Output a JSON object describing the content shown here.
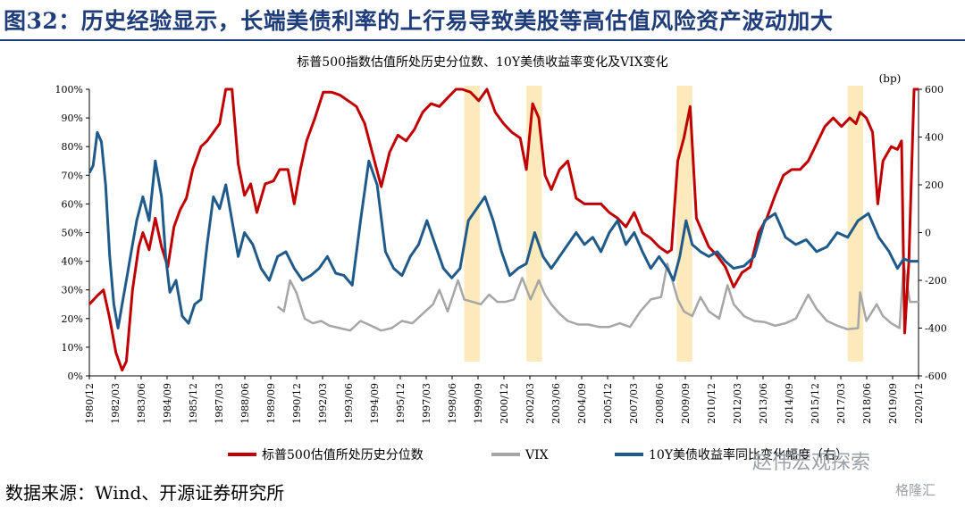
{
  "headline": "图32：历史经验显示，长端美债利率的上行易导致美股等高估值风险资产波动加大",
  "source_note": "数据来源：Wind、开源证券研究所",
  "watermark": "赵伟宏观探索",
  "corner_mark": "格隆汇",
  "chart_data": {
    "type": "line",
    "title": "标普500指数估值所处历史分位数、10Y美债收益率变化及VIX变化",
    "y_right_unit": "(bp)",
    "x_labels": [
      "1980/12",
      "1982/03",
      "1983/06",
      "1984/09",
      "1985/12",
      "1987/03",
      "1988/06",
      "1989/09",
      "1990/12",
      "1992/03",
      "1993/06",
      "1994/09",
      "1995/12",
      "1997/03",
      "1998/06",
      "1999/09",
      "2000/12",
      "2002/03",
      "2003/06",
      "2004/09",
      "2005/12",
      "2007/03",
      "2008/06",
      "2009/09",
      "2010/12",
      "2012/03",
      "2013/06",
      "2014/09",
      "2015/12",
      "2017/03",
      "2018/06",
      "2019/09",
      "2020/12"
    ],
    "x_range": [
      1980.917,
      2020.917
    ],
    "y_left": {
      "min": 0,
      "max": 100,
      "ticks": [
        "0%",
        "10%",
        "20%",
        "30%",
        "40%",
        "50%",
        "60%",
        "70%",
        "80%",
        "90%",
        "100%"
      ]
    },
    "y_right": {
      "min": -600,
      "max": 600,
      "ticks": [
        "-600",
        "-400",
        "-200",
        "0",
        "200",
        "400",
        "600"
      ]
    },
    "highlight_periods": [
      [
        1999.0,
        1999.75
      ],
      [
        2002.0,
        2002.75
      ],
      [
        2009.25,
        2010.0
      ],
      [
        2017.5,
        2018.25
      ]
    ],
    "series": [
      {
        "name": "标普500估值所处历史分位数",
        "axis": "left",
        "color": "#c00000",
        "x": [
          1980.92,
          1981.3,
          1981.6,
          1981.9,
          1982.2,
          1982.5,
          1982.7,
          1983.0,
          1983.3,
          1983.5,
          1983.8,
          1984.1,
          1984.4,
          1984.7,
          1985.0,
          1985.3,
          1985.6,
          1985.9,
          1986.3,
          1986.6,
          1986.9,
          1987.2,
          1987.5,
          1987.8,
          1988.1,
          1988.4,
          1988.7,
          1989.0,
          1989.4,
          1989.8,
          1990.1,
          1990.5,
          1990.8,
          1991.1,
          1991.4,
          1991.8,
          1992.2,
          1992.6,
          1993.0,
          1993.4,
          1993.8,
          1994.2,
          1994.6,
          1995.0,
          1995.4,
          1995.8,
          1996.2,
          1996.6,
          1997.0,
          1997.4,
          1997.8,
          1998.2,
          1998.6,
          1998.9,
          1999.3,
          1999.7,
          2000.1,
          2000.5,
          2000.9,
          2001.3,
          2001.7,
          2002.0,
          2002.3,
          2002.6,
          2002.9,
          2003.2,
          2003.6,
          2004.0,
          2004.4,
          2004.8,
          2005.2,
          2005.6,
          2006.0,
          2006.4,
          2006.8,
          2007.2,
          2007.6,
          2008.0,
          2008.4,
          2008.8,
          2009.0,
          2009.3,
          2009.6,
          2009.9,
          2010.2,
          2010.5,
          2010.8,
          2011.2,
          2011.6,
          2012.0,
          2012.4,
          2012.8,
          2013.2,
          2013.6,
          2014.0,
          2014.4,
          2014.8,
          2015.2,
          2015.6,
          2016.0,
          2016.4,
          2016.8,
          2017.2,
          2017.6,
          2017.9,
          2018.1,
          2018.4,
          2018.7,
          2018.95,
          2019.2,
          2019.6,
          2019.9,
          2020.1,
          2020.25,
          2020.45,
          2020.7,
          2020.92
        ],
        "y": [
          25,
          28,
          30,
          20,
          8,
          2,
          5,
          30,
          45,
          50,
          44,
          55,
          45,
          38,
          52,
          58,
          62,
          72,
          80,
          82,
          85,
          88,
          100,
          100,
          74,
          63,
          67,
          57,
          67,
          68,
          72,
          72,
          60,
          72,
          82,
          90,
          99,
          99,
          98,
          96,
          94,
          88,
          77,
          66,
          78,
          84,
          82,
          86,
          92,
          95,
          94,
          97,
          100,
          100,
          99,
          96,
          100,
          92,
          88,
          85,
          83,
          72,
          95,
          90,
          70,
          65,
          72,
          75,
          62,
          60,
          60,
          60,
          57,
          55,
          52,
          57,
          50,
          48,
          45,
          43,
          44,
          75,
          83,
          94,
          55,
          50,
          45,
          42,
          38,
          31,
          36,
          38,
          50,
          55,
          63,
          70,
          72,
          72,
          75,
          81,
          87,
          90,
          87,
          90,
          88,
          92,
          90,
          85,
          60,
          75,
          80,
          79,
          82,
          15,
          40,
          100,
          100
        ]
      },
      {
        "name": "VIX",
        "axis": "right",
        "color": "#a6a6a6",
        "x": [
          1990.0,
          1990.3,
          1990.6,
          1990.9,
          1991.3,
          1991.7,
          1992.1,
          1992.5,
          1993.0,
          1993.5,
          1994.0,
          1994.5,
          1995.0,
          1995.5,
          1996.0,
          1996.5,
          1997.0,
          1997.5,
          1997.8,
          1998.2,
          1998.7,
          1999.0,
          1999.4,
          1999.8,
          2000.2,
          2000.6,
          2001.0,
          2001.4,
          2001.8,
          2002.2,
          2002.6,
          2002.9,
          2003.2,
          2003.6,
          2004.0,
          2004.5,
          2005.0,
          2005.5,
          2006.0,
          2006.5,
          2007.0,
          2007.5,
          2008.0,
          2008.5,
          2008.8,
          2009.0,
          2009.3,
          2009.6,
          2010.0,
          2010.4,
          2010.8,
          2011.3,
          2011.7,
          2012.0,
          2012.5,
          2013.0,
          2013.5,
          2014.0,
          2014.5,
          2015.0,
          2015.6,
          2016.0,
          2016.5,
          2017.0,
          2017.5,
          2018.0,
          2018.1,
          2018.4,
          2018.9,
          2019.2,
          2019.6,
          2020.0,
          2020.2,
          2020.5,
          2020.92
        ],
        "y": [
          -310,
          -330,
          -200,
          -250,
          -360,
          -380,
          -370,
          -390,
          -400,
          -410,
          -370,
          -390,
          -410,
          -400,
          -370,
          -380,
          -340,
          -300,
          -240,
          -330,
          -200,
          -280,
          -290,
          -300,
          -260,
          -290,
          -290,
          -280,
          -190,
          -280,
          -200,
          -260,
          -300,
          -340,
          -370,
          -385,
          -385,
          -395,
          -395,
          -380,
          -395,
          -330,
          -280,
          -270,
          -130,
          -190,
          -280,
          -330,
          -350,
          -270,
          -330,
          -360,
          -220,
          -300,
          -350,
          -370,
          -375,
          -390,
          -380,
          -360,
          -260,
          -320,
          -370,
          -390,
          -405,
          -400,
          -250,
          -370,
          -300,
          -350,
          -380,
          -400,
          -130,
          -290,
          -290
        ]
      },
      {
        "name": "10Y美债收益率同比变化幅度（右）",
        "axis": "right",
        "color": "#1f5a8a",
        "x": [
          1980.92,
          1981.1,
          1981.3,
          1981.5,
          1981.7,
          1981.9,
          1982.1,
          1982.3,
          1982.5,
          1982.7,
          1982.9,
          1983.2,
          1983.5,
          1983.8,
          1984.1,
          1984.4,
          1984.6,
          1984.8,
          1985.1,
          1985.4,
          1985.7,
          1986.0,
          1986.3,
          1986.6,
          1986.9,
          1987.2,
          1987.5,
          1987.8,
          1988.1,
          1988.4,
          1988.8,
          1989.2,
          1989.6,
          1990.0,
          1990.4,
          1990.8,
          1991.2,
          1991.6,
          1992.0,
          1992.4,
          1992.8,
          1993.2,
          1993.6,
          1994.0,
          1994.4,
          1994.8,
          1995.2,
          1995.6,
          1996.0,
          1996.4,
          1996.8,
          1997.2,
          1997.6,
          1998.0,
          1998.4,
          1998.8,
          1999.2,
          1999.6,
          2000.0,
          2000.4,
          2000.8,
          2001.2,
          2001.6,
          2002.0,
          2002.4,
          2002.8,
          2003.2,
          2003.6,
          2004.0,
          2004.4,
          2004.8,
          2005.2,
          2005.6,
          2006.0,
          2006.4,
          2006.8,
          2007.2,
          2007.6,
          2008.0,
          2008.4,
          2008.8,
          2009.1,
          2009.4,
          2009.7,
          2010.0,
          2010.4,
          2010.8,
          2011.2,
          2011.6,
          2012.0,
          2012.5,
          2013.0,
          2013.5,
          2014.0,
          2014.5,
          2015.0,
          2015.5,
          2016.0,
          2016.5,
          2017.0,
          2017.5,
          2018.0,
          2018.5,
          2019.0,
          2019.5,
          2019.9,
          2020.2,
          2020.5,
          2020.92
        ],
        "y": [
          250,
          280,
          420,
          380,
          200,
          -100,
          -300,
          -400,
          -300,
          -200,
          -100,
          50,
          150,
          50,
          300,
          150,
          -100,
          -250,
          -200,
          -350,
          -380,
          -300,
          -280,
          -50,
          150,
          100,
          200,
          50,
          -100,
          0,
          -50,
          -150,
          -200,
          -100,
          -80,
          -150,
          -200,
          -180,
          -150,
          -100,
          -170,
          -180,
          -220,
          50,
          300,
          200,
          -80,
          -150,
          -180,
          -100,
          -50,
          50,
          -50,
          -150,
          -190,
          -150,
          50,
          100,
          150,
          50,
          -80,
          -180,
          -150,
          -130,
          0,
          -100,
          -150,
          -100,
          -50,
          0,
          -50,
          -20,
          -80,
          0,
          50,
          -50,
          0,
          -80,
          -150,
          -100,
          -150,
          -200,
          -100,
          50,
          -50,
          -80,
          -100,
          -80,
          -120,
          -150,
          -140,
          -100,
          50,
          80,
          -20,
          -50,
          -30,
          -80,
          -60,
          0,
          -20,
          50,
          80,
          -20,
          -80,
          -150,
          -110,
          -120,
          -120
        ]
      }
    ]
  }
}
